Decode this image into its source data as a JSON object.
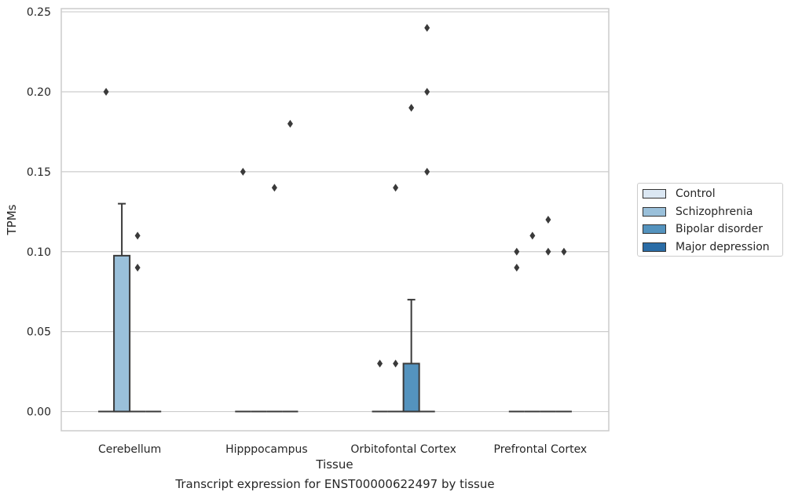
{
  "chart_data": {
    "type": "box",
    "title": "",
    "caption": "Transcript expression for ENST00000622497 by tissue",
    "xlabel": "Tissue",
    "ylabel": "TPMs",
    "ylim": [
      -0.012,
      0.252
    ],
    "yticks": [
      0.0,
      0.05,
      0.1,
      0.15,
      0.2,
      0.25
    ],
    "ytick_labels": [
      "0.00",
      "0.05",
      "0.10",
      "0.15",
      "0.20",
      "0.25"
    ],
    "grid": "horizontal",
    "legend_position": "right",
    "categories": [
      "Cerebellum",
      "Hipppocampus",
      "Orbitofontal Cortex",
      "Prefrontal Cortex"
    ],
    "series": [
      {
        "name": "Control",
        "color": "#dbe7f3",
        "boxes": [
          {
            "q1": 0,
            "median": 0,
            "q3": 0,
            "whisker_low": 0,
            "whisker_high": 0,
            "outliers": [
              0.2
            ]
          },
          {
            "q1": 0,
            "median": 0,
            "q3": 0,
            "whisker_low": 0,
            "whisker_high": 0,
            "outliers": [
              0.15
            ]
          },
          {
            "q1": 0,
            "median": 0,
            "q3": 0,
            "whisker_low": 0,
            "whisker_high": 0,
            "outliers": [
              0.03
            ]
          },
          {
            "q1": 0,
            "median": 0,
            "q3": 0,
            "whisker_low": 0,
            "whisker_high": 0,
            "outliers": [
              0.1,
              0.09
            ]
          }
        ]
      },
      {
        "name": "Schizophrenia",
        "color": "#9ac0da",
        "boxes": [
          {
            "q1": 0,
            "median": 0,
            "q3": 0.0975,
            "whisker_low": 0,
            "whisker_high": 0.13,
            "outliers": []
          },
          {
            "q1": 0,
            "median": 0,
            "q3": 0,
            "whisker_low": 0,
            "whisker_high": 0,
            "outliers": []
          },
          {
            "q1": 0,
            "median": 0,
            "q3": 0,
            "whisker_low": 0,
            "whisker_high": 0,
            "outliers": [
              0.14,
              0.03
            ]
          },
          {
            "q1": 0,
            "median": 0,
            "q3": 0,
            "whisker_low": 0,
            "whisker_high": 0,
            "outliers": [
              0.11
            ]
          }
        ]
      },
      {
        "name": "Bipolar disorder",
        "color": "#5493be",
        "boxes": [
          {
            "q1": 0,
            "median": 0,
            "q3": 0,
            "whisker_low": 0,
            "whisker_high": 0,
            "outliers": [
              0.11,
              0.09
            ]
          },
          {
            "q1": 0,
            "median": 0,
            "q3": 0,
            "whisker_low": 0,
            "whisker_high": 0,
            "outliers": [
              0.14
            ]
          },
          {
            "q1": 0,
            "median": 0,
            "q3": 0.03,
            "whisker_low": 0,
            "whisker_high": 0.07,
            "outliers": [
              0.19
            ]
          },
          {
            "q1": 0,
            "median": 0,
            "q3": 0,
            "whisker_low": 0,
            "whisker_high": 0,
            "outliers": [
              0.12,
              0.1
            ]
          }
        ]
      },
      {
        "name": "Major depression",
        "color": "#2a6ca6",
        "boxes": [
          {
            "q1": 0,
            "median": 0,
            "q3": 0,
            "whisker_low": 0,
            "whisker_high": 0,
            "outliers": []
          },
          {
            "q1": 0,
            "median": 0,
            "q3": 0,
            "whisker_low": 0,
            "whisker_high": 0,
            "outliers": [
              0.18
            ]
          },
          {
            "q1": 0,
            "median": 0,
            "q3": 0,
            "whisker_low": 0,
            "whisker_high": 0,
            "outliers": [
              0.24,
              0.2,
              0.15
            ]
          },
          {
            "q1": 0,
            "median": 0,
            "q3": 0,
            "whisker_low": 0,
            "whisker_high": 0,
            "outliers": [
              0.1
            ]
          }
        ]
      }
    ]
  }
}
